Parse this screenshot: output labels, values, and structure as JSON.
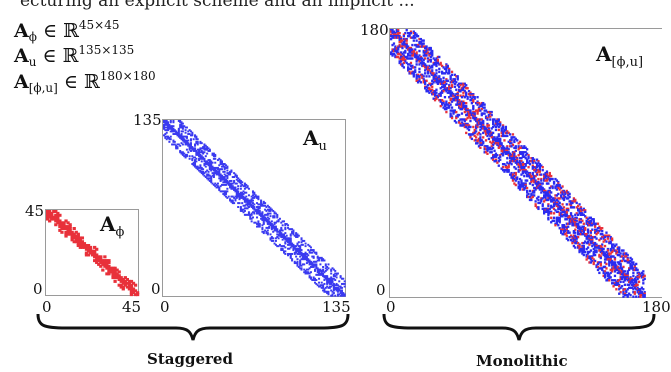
{
  "header_fragment": "ecturing an explicit scheme and an implicit ...",
  "equations": [
    {
      "symbol": "A",
      "subscript": "ϕ",
      "relation": " ∈ ℝ",
      "power": "45×45"
    },
    {
      "symbol": "A",
      "subscript": "u",
      "relation": " ∈ ℝ",
      "power": "135×135"
    },
    {
      "symbol": "A",
      "subscript": "[ϕ,u]",
      "relation": " ∈ ℝ",
      "power": "180×180"
    }
  ],
  "panels": {
    "phi": {
      "label_symbol": "A",
      "label_sub": "ϕ",
      "ticks": {
        "y_top": "45",
        "y_bottom": "0",
        "x_left": "0",
        "x_right": "45"
      },
      "color": "#e8313a",
      "size": 45
    },
    "u": {
      "label_symbol": "A",
      "label_sub": "u",
      "ticks": {
        "y_top": "135",
        "y_bottom": "0",
        "x_left": "0",
        "x_right": "135"
      },
      "color": "#3a3af0",
      "size": 135
    },
    "mono": {
      "label_symbol": "A",
      "label_sub": "[ϕ,u]",
      "ticks": {
        "y_top": "180",
        "y_bottom": "0",
        "x_left": "0",
        "x_right": "180"
      },
      "color_primary": "#2b2bf0",
      "color_secondary": "#e8313a",
      "size": 180
    }
  },
  "captions": {
    "staggered": "Staggered",
    "monolithic": "Monolithic"
  }
}
